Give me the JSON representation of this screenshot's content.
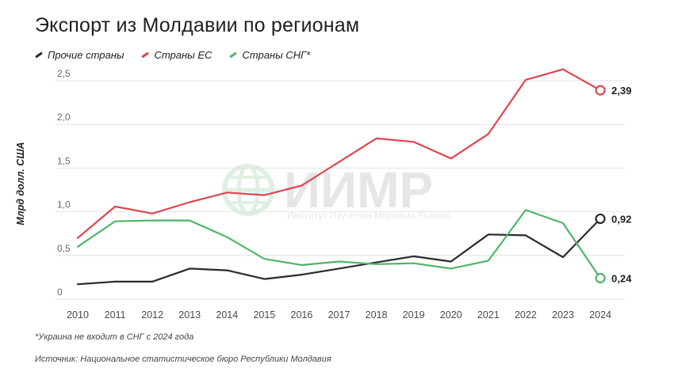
{
  "title": "Экспорт из Молдавии по регионам",
  "colors": {
    "other": "#2b2b2b",
    "eu": "#e04550",
    "cis": "#4fb56a",
    "grid": "#e2e2e2"
  },
  "watermark": {
    "main": "ИИМР",
    "sub": "Институт Изучения Мировых Рынков"
  },
  "footnote": "*Украина не входит в СНГ с 2024 года",
  "source": "Источник: Национальное статистическое бюро Республики Молдавия",
  "chart_data": {
    "type": "line",
    "title": "Экспорт из Молдавии по регионам",
    "ylabel": "Млрд долл. США",
    "xlabel": "",
    "ylim": [
      0,
      2.5
    ],
    "yticks": [
      "0",
      "0,5",
      "1,0",
      "1,5",
      "2,0",
      "2,5"
    ],
    "grid": true,
    "legend_position": "top-left",
    "x": [
      "2010",
      "2011",
      "2012",
      "2013",
      "2014",
      "2015",
      "2016",
      "2017",
      "2018",
      "2019",
      "2020",
      "2021",
      "2022",
      "2023",
      "2024"
    ],
    "series": [
      {
        "name": "Прочие страны",
        "color": "#2b2b2b",
        "values": [
          0.17,
          0.2,
          0.2,
          0.35,
          0.33,
          0.23,
          0.28,
          0.35,
          0.42,
          0.49,
          0.43,
          0.74,
          0.73,
          0.48,
          0.92
        ],
        "end_label": "0,92"
      },
      {
        "name": "Страны ЕС",
        "color": "#e04550",
        "values": [
          0.7,
          1.06,
          0.98,
          1.11,
          1.22,
          1.19,
          1.3,
          1.57,
          1.84,
          1.8,
          1.61,
          1.89,
          2.51,
          2.63,
          2.39
        ],
        "end_label": "2,39"
      },
      {
        "name": "Страны СНГ*",
        "color": "#4fb56a",
        "values": [
          0.6,
          0.89,
          0.9,
          0.9,
          0.71,
          0.46,
          0.39,
          0.43,
          0.4,
          0.41,
          0.35,
          0.44,
          1.02,
          0.87,
          0.24
        ],
        "end_label": "0,24"
      }
    ]
  }
}
